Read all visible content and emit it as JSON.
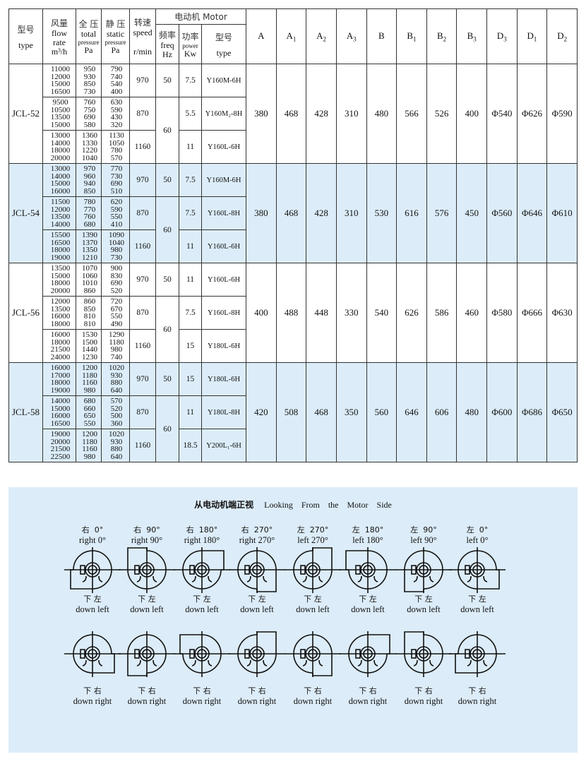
{
  "header": {
    "type_cn": "型号",
    "type_en": "type",
    "flow_cn": "风量",
    "flow_en1": "flow",
    "flow_en2": "rate",
    "flow_unit": "m³/h",
    "total_cn": "全 压",
    "total_en1": "total",
    "total_en2": "pressure",
    "total_unit": "Pa",
    "static_cn": "静 压",
    "static_en1": "static",
    "static_en2": "pressure",
    "static_unit": "Pa",
    "speed_cn": "转速",
    "speed_en": "speed",
    "speed_unit": "r/min",
    "motor_title": "电动机 Motor",
    "freq_cn": "频率",
    "freq_en": "freq",
    "freq_unit": "Hz",
    "power_cn": "功率",
    "power_en": "power",
    "power_unit": "Kw",
    "mtype_cn": "型号",
    "mtype_en": "type",
    "dims": [
      {
        "main": "A",
        "sub": ""
      },
      {
        "main": "A",
        "sub": "1"
      },
      {
        "main": "A",
        "sub": "2"
      },
      {
        "main": "A",
        "sub": "3"
      },
      {
        "main": "B",
        "sub": ""
      },
      {
        "main": "B",
        "sub": "1"
      },
      {
        "main": "B",
        "sub": "2"
      },
      {
        "main": "B",
        "sub": "3"
      },
      {
        "main": "D",
        "sub": "3"
      },
      {
        "main": "D",
        "sub": "1"
      },
      {
        "main": "D",
        "sub": "2"
      }
    ]
  },
  "models": [
    {
      "name": "JCL-52",
      "dims": [
        "380",
        "468",
        "428",
        "310",
        "480",
        "566",
        "526",
        "400",
        "Φ540",
        "Φ626",
        "Φ590"
      ],
      "groups": [
        {
          "flow": [
            "11000",
            "12000",
            "15000",
            "16500"
          ],
          "total": [
            "950",
            "930",
            "850",
            "730"
          ],
          "static": [
            "790",
            "740",
            "540",
            "400"
          ],
          "speed": "970",
          "freq": "50",
          "power": "7.5",
          "motor": "Y160M-6H"
        },
        {
          "flow": [
            "9500",
            "10500",
            "13500",
            "15000"
          ],
          "total": [
            "760",
            "750",
            "690",
            "580"
          ],
          "static": [
            "630",
            "590",
            "430",
            "320"
          ],
          "speed": "870",
          "freq": "60",
          "power": "5.5",
          "motor": "Y160M₂-8H"
        },
        {
          "flow": [
            "13000",
            "14000",
            "18000",
            "20000"
          ],
          "total": [
            "1360",
            "1330",
            "1220",
            "1040"
          ],
          "static": [
            "1130",
            "1050",
            "780",
            "570"
          ],
          "speed": "1160",
          "power": "11",
          "motor": "Y160L-6H"
        }
      ]
    },
    {
      "name": "JCL-54",
      "dims": [
        "380",
        "468",
        "428",
        "310",
        "530",
        "616",
        "576",
        "450",
        "Φ560",
        "Φ646",
        "Φ610"
      ],
      "groups": [
        {
          "flow": [
            "13000",
            "14000",
            "15000",
            "16000"
          ],
          "total": [
            "970",
            "960",
            "940",
            "850"
          ],
          "static": [
            "770",
            "730",
            "690",
            "510"
          ],
          "speed": "970",
          "freq": "50",
          "power": "7.5",
          "motor": "Y160M-6H"
        },
        {
          "flow": [
            "11500",
            "12000",
            "13500",
            "14000"
          ],
          "total": [
            "780",
            "770",
            "760",
            "680"
          ],
          "static": [
            "620",
            "590",
            "550",
            "410"
          ],
          "speed": "870",
          "freq": "60",
          "power": "7.5",
          "motor": "Y160L-8H"
        },
        {
          "flow": [
            "15500",
            "16500",
            "18000",
            "19000"
          ],
          "total": [
            "1390",
            "1370",
            "1350",
            "1210"
          ],
          "static": [
            "1090",
            "1040",
            "980",
            "730"
          ],
          "speed": "1160",
          "power": "11",
          "motor": "Y160L-6H"
        }
      ]
    },
    {
      "name": "JCL-56",
      "dims": [
        "400",
        "488",
        "448",
        "330",
        "540",
        "626",
        "586",
        "460",
        "Φ580",
        "Φ666",
        "Φ630"
      ],
      "groups": [
        {
          "flow": [
            "13500",
            "15000",
            "18000",
            "20000"
          ],
          "total": [
            "1070",
            "1060",
            "1010",
            "860"
          ],
          "static": [
            "900",
            "830",
            "690",
            "520"
          ],
          "speed": "970",
          "freq": "50",
          "power": "11",
          "motor": "Y160L-6H"
        },
        {
          "flow": [
            "12000",
            "13500",
            "16000",
            "18000"
          ],
          "total": [
            "860",
            "850",
            "810",
            "810"
          ],
          "static": [
            "720",
            "670",
            "550",
            "490"
          ],
          "speed": "870",
          "freq": "60",
          "power": "7.5",
          "motor": "Y160L-8H"
        },
        {
          "flow": [
            "16000",
            "18000",
            "21500",
            "24000"
          ],
          "total": [
            "1530",
            "1500",
            "1440",
            "1230"
          ],
          "static": [
            "1290",
            "1180",
            "980",
            "740"
          ],
          "speed": "1160",
          "power": "15",
          "motor": "Y180L-6H"
        }
      ]
    },
    {
      "name": "JCL-58",
      "dims": [
        "420",
        "508",
        "468",
        "350",
        "560",
        "646",
        "606",
        "480",
        "Φ600",
        "Φ686",
        "Φ650"
      ],
      "groups": [
        {
          "flow": [
            "16000",
            "17000",
            "18000",
            "19000"
          ],
          "total": [
            "1200",
            "1180",
            "1160",
            "980"
          ],
          "static": [
            "1020",
            "930",
            "880",
            "640"
          ],
          "speed": "970",
          "freq": "50",
          "power": "15",
          "motor": "Y180L-6H"
        },
        {
          "flow": [
            "14000",
            "15000",
            "16000",
            "16500"
          ],
          "total": [
            "680",
            "660",
            "650",
            "550"
          ],
          "static": [
            "570",
            "520",
            "500",
            "360"
          ],
          "speed": "870",
          "freq": "60",
          "power": "11",
          "motor": "Y180L-8H"
        },
        {
          "flow": [
            "19000",
            "20000",
            "21500",
            "22500"
          ],
          "total": [
            "1200",
            "1180",
            "1160",
            "980"
          ],
          "static": [
            "1020",
            "930",
            "880",
            "640"
          ],
          "speed": "1160",
          "power": "18.5",
          "motor": "Y200L₁-6H"
        }
      ]
    }
  ],
  "diagram": {
    "title_cn": "从电动机端正视",
    "title_en": [
      "Looking",
      "From",
      "the",
      "Motor",
      "Side"
    ],
    "row1": [
      {
        "cn": "右  0°",
        "en": "right 0°",
        "angle": 0,
        "mirror": false
      },
      {
        "cn": "右  90°",
        "en": "right 90°",
        "angle": 90,
        "mirror": false
      },
      {
        "cn": "右  180°",
        "en": "right 180°",
        "angle": 180,
        "mirror": false
      },
      {
        "cn": "右  270°",
        "en": "right 270°",
        "angle": 270,
        "mirror": false
      },
      {
        "cn": "左  270°",
        "en": "left 270°",
        "angle": 270,
        "mirror": true
      },
      {
        "cn": "左  180°",
        "en": "left 180°",
        "angle": 180,
        "mirror": true
      },
      {
        "cn": "左  90°",
        "en": "left 90°",
        "angle": 90,
        "mirror": true
      },
      {
        "cn": "左  0°",
        "en": "left 0°",
        "angle": 0,
        "mirror": true
      }
    ],
    "row1_bottom_cn": "下 左",
    "row1_bottom_en": "down left",
    "row2": [
      {
        "angle": 0,
        "mirror": true
      },
      {
        "angle": 90,
        "mirror": true
      },
      {
        "angle": 180,
        "mirror": true
      },
      {
        "angle": 270,
        "mirror": true
      },
      {
        "angle": 270,
        "mirror": false
      },
      {
        "angle": 180,
        "mirror": false
      },
      {
        "angle": 90,
        "mirror": false
      },
      {
        "angle": 0,
        "mirror": false
      }
    ],
    "row2_bottom_cn": "下 右",
    "row2_bottom_en": "down right"
  }
}
